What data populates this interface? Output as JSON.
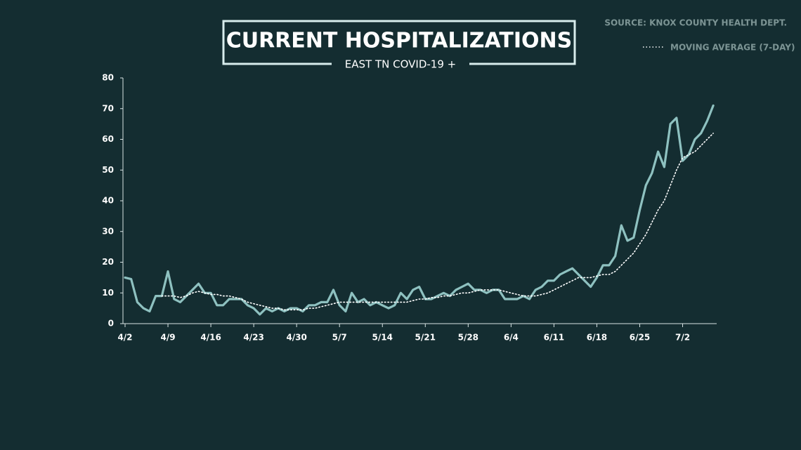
{
  "chart_data": {
    "type": "line",
    "title": "CURRENT HOSPITALIZATIONS",
    "subtitle": "EAST TN COVID-19 +",
    "source": "SOURCE: KNOX COUNTY HEALTH DEPT.",
    "categories": [
      "4/2",
      null,
      null,
      null,
      null,
      null,
      null,
      "4/9",
      null,
      null,
      null,
      null,
      null,
      null,
      "4/16",
      null,
      null,
      null,
      null,
      null,
      null,
      "4/23",
      null,
      null,
      null,
      null,
      null,
      null,
      "4/30",
      null,
      null,
      null,
      null,
      null,
      null,
      "5/7",
      null,
      null,
      null,
      null,
      null,
      null,
      "5/14",
      null,
      null,
      null,
      null,
      null,
      null,
      "5/21",
      null,
      null,
      null,
      null,
      null,
      null,
      "5/28",
      null,
      null,
      null,
      null,
      null,
      null,
      "6/4",
      null,
      null,
      null,
      null,
      null,
      null,
      "6/11",
      null,
      null,
      null,
      null,
      null,
      null,
      "6/18",
      null,
      null,
      null,
      null,
      null,
      null,
      "6/25",
      null,
      null,
      null,
      null,
      null,
      null,
      "7/2",
      null,
      null,
      null,
      null,
      null
    ],
    "series": [
      {
        "color": "#8ec1c0",
        "style": "solid",
        "values": [
          15,
          14.5,
          7,
          5,
          4,
          9,
          9,
          17,
          8,
          7,
          9,
          11,
          13,
          10,
          10,
          6,
          6,
          8,
          8,
          8,
          6,
          5,
          3,
          5,
          4,
          5,
          4,
          5,
          5,
          4,
          6,
          6,
          7,
          7,
          11,
          6,
          4,
          10,
          7,
          8,
          6,
          7,
          6,
          5,
          6,
          10,
          8,
          11,
          12,
          8,
          8,
          9,
          10,
          9,
          11,
          12,
          13,
          11,
          11,
          10,
          11,
          11,
          8,
          8,
          8,
          9,
          8,
          11,
          12,
          14,
          14,
          16,
          17,
          18,
          16,
          14,
          12,
          15,
          19,
          19,
          22,
          32,
          27,
          28,
          37,
          45,
          49,
          56,
          51,
          65,
          67,
          53,
          55,
          60,
          62,
          66,
          71
        ]
      },
      {
        "name": "MOVING AVERAGE (7-DAY)",
        "color": "#ffffff",
        "style": "dotted",
        "values": [
          null,
          null,
          null,
          null,
          null,
          null,
          9,
          9,
          9,
          8.5,
          9,
          10,
          10.5,
          10,
          9.5,
          9.5,
          9,
          9,
          8.5,
          8,
          7,
          6.5,
          6,
          5.5,
          5,
          5,
          4.5,
          4.5,
          4.5,
          4.5,
          5,
          5,
          5.5,
          6,
          6.5,
          7,
          7,
          7,
          7,
          7,
          7,
          7,
          7,
          7,
          7,
          7,
          7,
          7.5,
          8,
          8,
          8.5,
          8.5,
          9,
          9,
          9.5,
          10,
          10,
          10.5,
          11,
          11,
          11,
          11,
          10.5,
          10,
          9.5,
          9,
          9,
          9,
          9.5,
          10,
          11,
          12,
          13,
          14,
          15,
          15,
          15,
          15.5,
          16,
          16,
          17,
          19,
          21,
          23,
          26,
          29,
          33,
          37,
          40,
          45,
          50,
          54,
          55,
          56,
          58,
          60,
          62
        ]
      }
    ],
    "ylim": [
      0,
      80
    ],
    "yticks": [
      0,
      10,
      20,
      30,
      40,
      50,
      60,
      70,
      80
    ],
    "grid": false
  }
}
